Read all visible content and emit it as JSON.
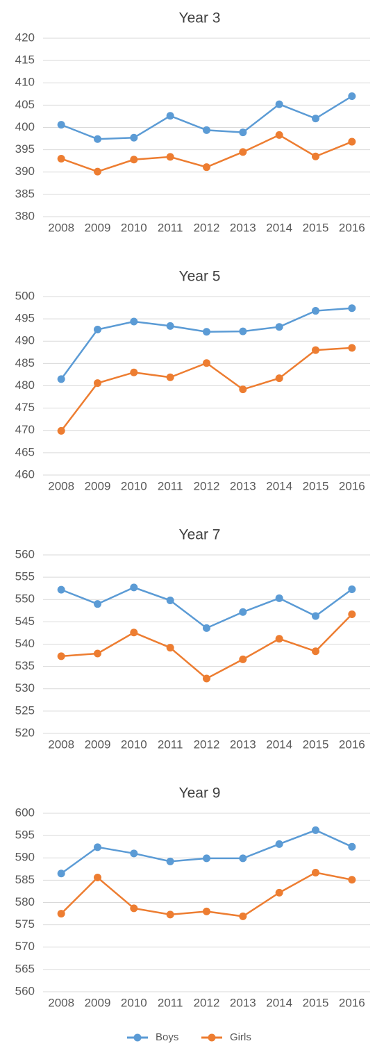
{
  "chart_data": [
    {
      "type": "line",
      "title": "Year 3",
      "categories": [
        "2008",
        "2009",
        "2010",
        "2011",
        "2012",
        "2013",
        "2014",
        "2015",
        "2016"
      ],
      "ylim": [
        380,
        420
      ],
      "yticks": [
        380,
        385,
        390,
        395,
        400,
        405,
        410,
        415,
        420
      ],
      "grid": true,
      "series": [
        {
          "name": "Boys",
          "color": "#5b9bd5",
          "values": [
            400.6,
            397.4,
            397.7,
            402.6,
            399.4,
            398.9,
            405.2,
            402.0,
            407.0
          ]
        },
        {
          "name": "Girls",
          "color": "#ed7d31",
          "values": [
            393.0,
            390.1,
            392.8,
            393.4,
            391.1,
            394.5,
            398.3,
            393.5,
            396.8
          ]
        }
      ]
    },
    {
      "type": "line",
      "title": "Year 5",
      "categories": [
        "2008",
        "2009",
        "2010",
        "2011",
        "2012",
        "2013",
        "2014",
        "2015",
        "2016"
      ],
      "ylim": [
        460,
        500
      ],
      "yticks": [
        460,
        465,
        470,
        475,
        480,
        485,
        490,
        495,
        500
      ],
      "grid": true,
      "series": [
        {
          "name": "Boys",
          "color": "#5b9bd5",
          "values": [
            481.5,
            492.6,
            494.4,
            493.4,
            492.1,
            492.2,
            493.2,
            496.8,
            497.4
          ]
        },
        {
          "name": "Girls",
          "color": "#ed7d31",
          "values": [
            469.9,
            480.6,
            483.0,
            481.9,
            485.1,
            479.2,
            481.7,
            488.0,
            488.5
          ]
        }
      ]
    },
    {
      "type": "line",
      "title": "Year 7",
      "categories": [
        "2008",
        "2009",
        "2010",
        "2011",
        "2012",
        "2013",
        "2014",
        "2015",
        "2016"
      ],
      "ylim": [
        520,
        560
      ],
      "yticks": [
        520,
        525,
        530,
        535,
        540,
        545,
        550,
        555,
        560
      ],
      "grid": true,
      "series": [
        {
          "name": "Boys",
          "color": "#5b9bd5",
          "values": [
            552.2,
            549.0,
            552.7,
            549.8,
            543.6,
            547.2,
            550.3,
            546.3,
            552.3
          ]
        },
        {
          "name": "Girls",
          "color": "#ed7d31",
          "values": [
            537.3,
            537.9,
            542.6,
            539.2,
            532.3,
            536.6,
            541.2,
            538.4,
            546.7
          ]
        }
      ]
    },
    {
      "type": "line",
      "title": "Year 9",
      "categories": [
        "2008",
        "2009",
        "2010",
        "2011",
        "2012",
        "2013",
        "2014",
        "2015",
        "2016"
      ],
      "ylim": [
        560,
        600
      ],
      "yticks": [
        560,
        565,
        570,
        575,
        580,
        585,
        590,
        595,
        600
      ],
      "grid": true,
      "series": [
        {
          "name": "Boys",
          "color": "#5b9bd5",
          "values": [
            586.5,
            592.4,
            591.0,
            589.2,
            589.9,
            589.9,
            593.1,
            596.2,
            592.5
          ]
        },
        {
          "name": "Girls",
          "color": "#ed7d31",
          "values": [
            577.5,
            585.6,
            578.7,
            577.3,
            578.0,
            576.9,
            582.2,
            586.7,
            585.1
          ]
        }
      ]
    }
  ]
}
